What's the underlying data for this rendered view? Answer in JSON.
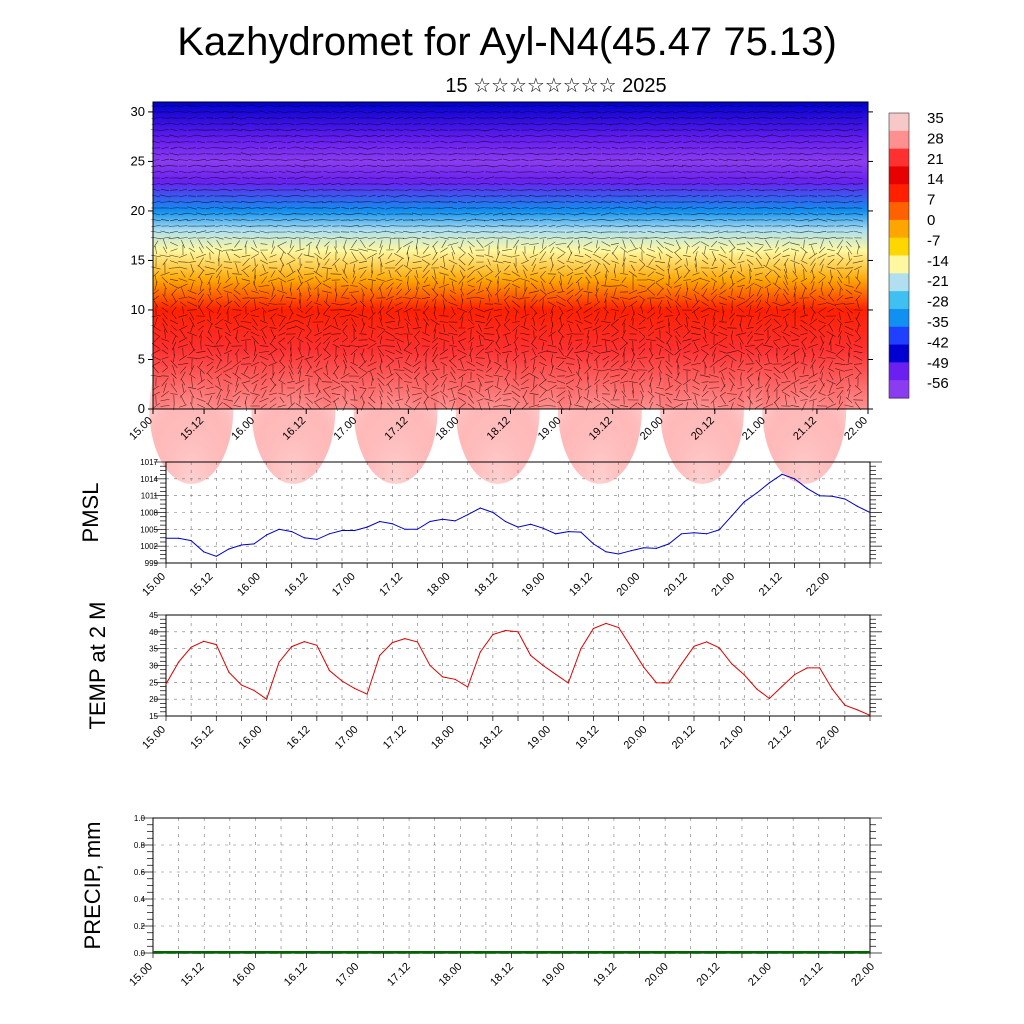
{
  "title": "Kazhydromet for Ayl-N4(45.47 75.13)",
  "subtitle": "15 ☆☆☆☆☆☆☆☆ 2025",
  "time_labels": [
    "15.00",
    "15.12",
    "16.00",
    "16.12",
    "17.00",
    "17.12",
    "18.00",
    "18.12",
    "19.00",
    "19.12",
    "20.00",
    "20.12",
    "21.00",
    "21.12",
    "22.00"
  ],
  "chart_data": [
    {
      "name": "cross-section",
      "type": "heatmap",
      "ylim": [
        0,
        31
      ],
      "y_ticks": [
        0,
        5,
        10,
        15,
        20,
        25,
        30
      ],
      "colorbar": {
        "labels": [
          "35",
          "28",
          "21",
          "14",
          "7",
          "0",
          "-7",
          "-14",
          "-21",
          "-28",
          "-35",
          "-42",
          "-49",
          "-56"
        ],
        "stops": [
          "#f6c8c8",
          "#ff9090",
          "#ff3030",
          "#e60000",
          "#ff2000",
          "#ff6000",
          "#ffa500",
          "#ffd700",
          "#fff8a0",
          "#b0e0f0",
          "#40c0f0",
          "#1090f0",
          "#2040ff",
          "#0000d0",
          "#6a20f0",
          "#8a3cf0"
        ]
      },
      "temperature_profile": {
        "heights": [
          0,
          6,
          10,
          13,
          16,
          18,
          20,
          23,
          25,
          27,
          31
        ],
        "values": [
          30,
          22,
          12,
          0,
          -12,
          -20,
          -35,
          -52,
          -58,
          -52,
          -48
        ]
      }
    },
    {
      "name": "PMSL",
      "type": "line",
      "ylabel": "PMSL",
      "ylim": [
        999,
        1017
      ],
      "y_ticks": [
        999,
        1002,
        1005,
        1008,
        1011,
        1014,
        1017
      ],
      "color": "#0000cc",
      "x_hours": [
        0,
        3,
        6,
        9,
        12,
        15,
        18,
        21,
        24,
        27,
        30,
        33,
        36,
        39,
        42,
        45,
        48,
        51,
        54,
        57,
        60,
        63,
        66,
        69,
        72,
        75,
        78,
        81,
        84,
        87,
        90,
        93,
        96,
        99,
        102,
        105,
        108,
        111,
        114,
        117,
        120,
        123,
        126,
        129,
        132,
        135,
        138,
        141,
        144,
        147,
        150,
        153,
        156,
        159,
        162,
        165,
        168
      ],
      "values": [
        1003.4,
        1003.4,
        1003.0,
        1001.0,
        1000.2,
        1001.5,
        1002.2,
        1002.4,
        1004.0,
        1005.0,
        1004.6,
        1003.5,
        1003.2,
        1004.2,
        1004.8,
        1004.8,
        1005.4,
        1006.4,
        1006.0,
        1005.0,
        1005.0,
        1006.4,
        1006.8,
        1006.5,
        1007.6,
        1008.8,
        1008.0,
        1006.4,
        1005.4,
        1005.9,
        1005.2,
        1004.2,
        1004.6,
        1004.5,
        1002.4,
        1001.0,
        1000.6,
        1001.2,
        1001.7,
        1001.6,
        1002.4,
        1004.2,
        1004.4,
        1004.2,
        1004.9,
        1007.4,
        1009.9,
        1011.5,
        1013.3,
        1014.8,
        1014.0,
        1012.3,
        1011.0,
        1010.9,
        1010.4,
        1009.1,
        1008.0
      ]
    },
    {
      "name": "TEMP at 2 M",
      "type": "line",
      "ylabel": "TEMP at 2 M",
      "ylim": [
        15,
        45
      ],
      "y_ticks": [
        15,
        20,
        25,
        30,
        35,
        40,
        45
      ],
      "color": "#dd0000",
      "x_hours": [
        0,
        3,
        6,
        9,
        12,
        15,
        18,
        21,
        24,
        27,
        30,
        33,
        36,
        39,
        42,
        45,
        48,
        51,
        54,
        57,
        60,
        63,
        66,
        69,
        72,
        75,
        78,
        81,
        84,
        87,
        90,
        93,
        96,
        99,
        102,
        105,
        108,
        111,
        114,
        117,
        120,
        123,
        126,
        129,
        132,
        135,
        138,
        141,
        144,
        147,
        150,
        153,
        156,
        159,
        162,
        165,
        168
      ],
      "values": [
        24.5,
        31.0,
        35.4,
        37.2,
        36.2,
        28.0,
        24.2,
        22.6,
        20.0,
        31.0,
        35.6,
        37.1,
        36.0,
        28.5,
        25.4,
        23.2,
        21.5,
        33.0,
        36.8,
        38.0,
        37.0,
        30.0,
        26.6,
        25.9,
        23.6,
        34.0,
        39.2,
        40.4,
        40.0,
        33.0,
        30.0,
        27.4,
        24.8,
        35.0,
        41.0,
        42.5,
        41.3,
        35.5,
        29.5,
        24.9,
        24.8,
        30.4,
        35.7,
        37.0,
        35.3,
        30.5,
        27.2,
        23.0,
        20.2,
        23.8,
        27.3,
        29.3,
        29.3,
        23.0,
        18.2,
        16.8,
        15.2
      ]
    },
    {
      "name": "PRECIP, mm",
      "type": "bar",
      "ylabel": "PRECIP, mm",
      "ylim": [
        0,
        1.0
      ],
      "y_ticks": [
        0.0,
        0.2,
        0.4,
        0.6,
        0.8,
        1.0
      ],
      "color": "#006400",
      "x_hours": [
        0,
        3,
        6,
        9,
        12,
        15,
        18,
        21,
        24,
        27,
        30,
        33,
        36,
        39,
        42,
        45,
        48,
        51,
        54,
        57,
        60,
        63,
        66,
        69,
        72,
        75,
        78,
        81,
        84,
        87,
        90,
        93,
        96,
        99,
        102,
        105,
        108,
        111,
        114,
        117,
        120,
        123,
        126,
        129,
        132,
        135,
        138,
        141,
        144,
        147,
        150,
        153,
        156,
        159,
        162,
        165
      ],
      "values": [
        0,
        0,
        0,
        0,
        0,
        0,
        0,
        0,
        0,
        0,
        0,
        0,
        0,
        0,
        0,
        0,
        0,
        0,
        0,
        0,
        0,
        0,
        0,
        0,
        0,
        0,
        0,
        0,
        0,
        0,
        0,
        0,
        0,
        0,
        0,
        0,
        0,
        0,
        0,
        0,
        0,
        0,
        0,
        0,
        0,
        0,
        0,
        0,
        0,
        0,
        0,
        0,
        0,
        0,
        0,
        0
      ]
    }
  ]
}
